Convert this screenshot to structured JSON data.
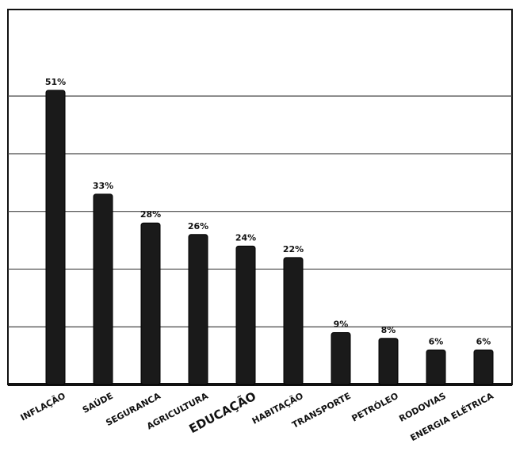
{
  "chart_data": {
    "type": "bar",
    "categories": [
      "INFLAÇÃO",
      "SAÚDE",
      "SEGURANCA",
      "AGRICULTURA",
      "EDUCAÇÃO",
      "HABITAÇÃO",
      "TRANSPORTE",
      "PETRÓLEO",
      "RODOVIAS",
      "ENERGIA ELÉTRICA"
    ],
    "values": [
      51,
      33,
      28,
      26,
      24,
      22,
      9,
      8,
      6,
      6
    ],
    "value_labels": [
      "51%",
      "33%",
      "28%",
      "26%",
      "24%",
      "22%",
      "9%",
      "8%",
      "6%",
      "6%"
    ],
    "color": "#1a1a1a",
    "ylim": [
      0,
      65
    ],
    "gridlines": [
      10,
      20,
      30,
      40,
      50
    ],
    "grid": true
  }
}
